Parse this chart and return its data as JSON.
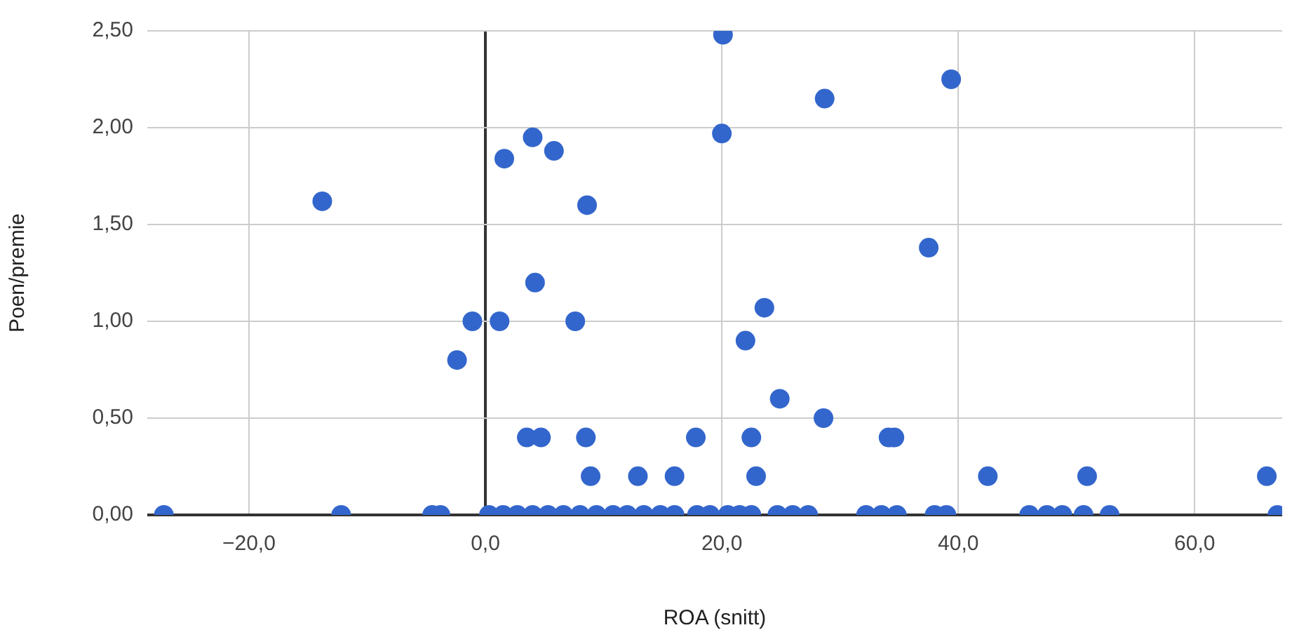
{
  "chart_data": {
    "type": "scatter",
    "xlabel": "ROA (snitt)",
    "ylabel": "Poen/premie",
    "series": [
      {
        "color": "#3366cc",
        "x": [
          -27.2,
          -13.8,
          -12.2,
          -4.5,
          -3.8,
          -2.4,
          -1.1,
          1.2,
          1.6,
          3.5,
          4.7,
          4.0,
          4.2,
          5.8,
          7.6,
          8.5,
          8.6,
          8.9,
          12.9,
          16.0,
          17.8,
          20.1,
          20.0,
          22.0,
          22.5,
          22.9,
          23.6,
          24.9,
          28.6,
          28.7,
          34.1,
          34.6,
          37.5,
          39.4,
          42.5,
          50.9,
          66.1,
          0.3,
          1.5,
          2.7,
          4.0,
          5.3,
          6.6,
          8.0,
          9.4,
          10.8,
          12.0,
          13.4,
          14.8,
          16.0,
          17.9,
          19.0,
          20.5,
          21.5,
          22.5,
          24.7,
          26.0,
          27.3,
          32.2,
          33.5,
          34.8,
          38.0,
          39.0,
          46.0,
          47.5,
          48.8,
          50.6,
          52.8,
          67.0
        ],
        "values": [
          0,
          1.62,
          0,
          0,
          0,
          0.8,
          1.0,
          1.0,
          1.84,
          0.4,
          0.4,
          1.95,
          1.2,
          1.88,
          1.0,
          0.4,
          1.6,
          0.2,
          0.2,
          0.2,
          0.4,
          2.48,
          1.97,
          0.9,
          0.4,
          0.2,
          1.07,
          0.6,
          0.5,
          2.15,
          0.4,
          0.4,
          1.38,
          2.25,
          0.2,
          0.2,
          0.2,
          0,
          0,
          0,
          0,
          0,
          0,
          0,
          0,
          0,
          0,
          0,
          0,
          0,
          0,
          0,
          0,
          0,
          0,
          0,
          0,
          0,
          0,
          0,
          0,
          0,
          0,
          0,
          0,
          0,
          0,
          0,
          0
        ]
      }
    ],
    "xlim": [
      -28.6,
      67.4
    ],
    "ylim": [
      0,
      2.5
    ],
    "xticks": [
      {
        "value": -20,
        "label": "−20,0"
      },
      {
        "value": 0,
        "label": "0,0"
      },
      {
        "value": 20,
        "label": "20,0"
      },
      {
        "value": 40,
        "label": "40,0"
      },
      {
        "value": 60,
        "label": "60,0"
      }
    ],
    "yticks": [
      {
        "value": 0,
        "label": "0,00"
      },
      {
        "value": 0.5,
        "label": "0,50"
      },
      {
        "value": 1,
        "label": "1,00"
      },
      {
        "value": 1.5,
        "label": "1,50"
      },
      {
        "value": 2,
        "label": "2,00"
      },
      {
        "value": 2.5,
        "label": "2,50"
      }
    ],
    "grid": true,
    "legend": false,
    "marker": "circle"
  }
}
